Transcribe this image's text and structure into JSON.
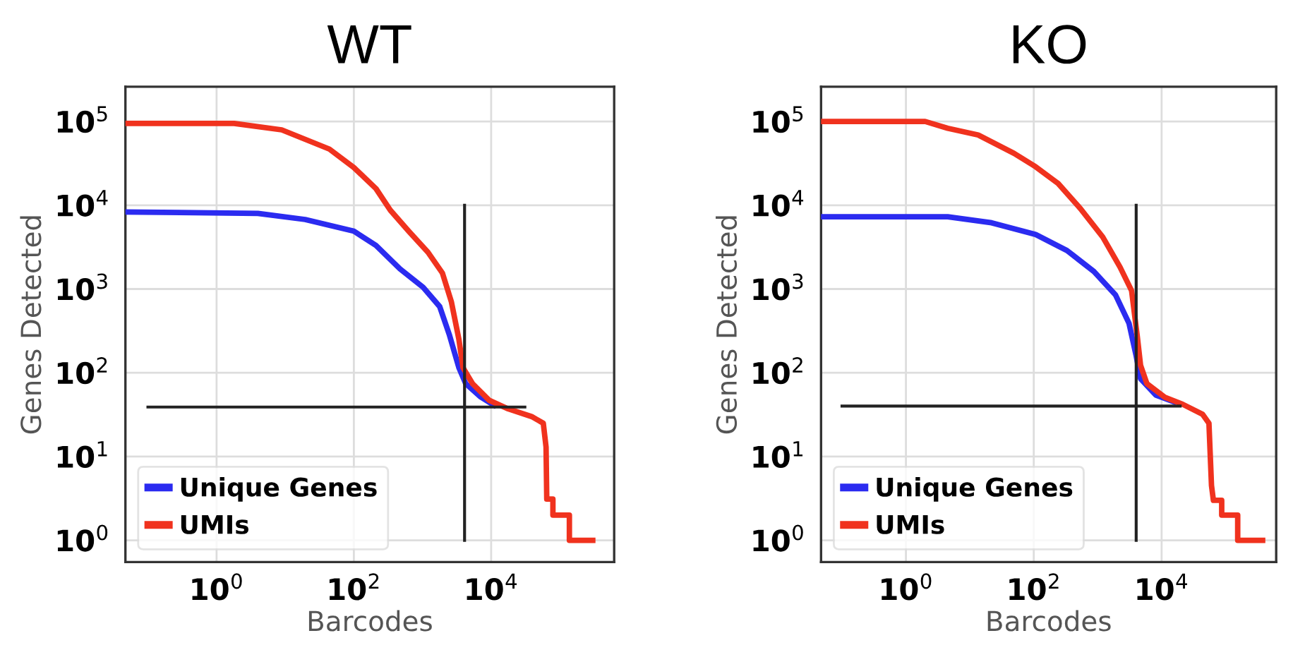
{
  "chart_data": [
    {
      "type": "line",
      "title": "WT",
      "xlabel": "Barcodes",
      "ylabel": "Genes Detected",
      "log": "xy",
      "grid": true,
      "legend": "bottom left",
      "xlim": [
        0.047,
        620000
      ],
      "ylim": [
        0.55,
        260000
      ],
      "xticks": [
        {
          "value": 1,
          "label": "10$^{0}$"
        },
        {
          "value": 100,
          "label": "10$^{2}$"
        },
        {
          "value": 10000,
          "label": "10$^{4}$"
        }
      ],
      "yticks": [
        {
          "value": 1,
          "label": "10$^{0}$"
        },
        {
          "value": 10,
          "label": "10$^{1}$"
        },
        {
          "value": 100,
          "label": "10$^{2}$"
        },
        {
          "value": 1000,
          "label": "10$^{3}$"
        },
        {
          "value": 10000,
          "label": "10$^{4}$"
        },
        {
          "value": 100000,
          "label": "10$^{5}$"
        }
      ],
      "series": [
        {
          "name": "Unique Genes",
          "color": "#2b2bf0",
          "x": [
            0.047,
            4,
            19.5,
            100,
            210,
            470,
            1020,
            1780,
            2450,
            3390,
            4270,
            6920,
            11000
          ],
          "values": [
            8300,
            8000,
            6760,
            4900,
            3310,
            1740,
            1050,
            617,
            288,
            115,
            74,
            52,
            41
          ]
        },
        {
          "name": "UMIs",
          "color": "#f0321e",
          "x": [
            0.047,
            1.8,
            8.9,
            44,
            100,
            210,
            340,
            630,
            1200,
            1950,
            2630,
            3390,
            3890,
            5370,
            9330,
            17800,
            38900,
            57500,
            63100,
            64600,
            79400,
            79400,
            138000,
            138000,
            302000
          ],
          "values": [
            95000,
            95000,
            79400,
            46800,
            28200,
            15800,
            8710,
            4900,
            2750,
            1550,
            708,
            251,
            115,
            74,
            47,
            37,
            30,
            25,
            13,
            3.1,
            3.1,
            2,
            2,
            1,
            1
          ]
        },
        {
          "color": "#222222",
          "x": [
            4100,
            4100
          ],
          "values": [
            1,
            10000
          ]
        },
        {
          "color": "#222222",
          "x": [
            0.1,
            31000
          ],
          "values": [
            39,
            39
          ]
        }
      ]
    },
    {
      "type": "line",
      "title": "KO",
      "xlabel": "Barcodes",
      "ylabel": "Genes Detected",
      "log": "xy",
      "grid": true,
      "legend": "bottom left",
      "xlim": [
        0.047,
        620000
      ],
      "ylim": [
        0.55,
        260000
      ],
      "xticks": [
        {
          "value": 1,
          "label": "10$^{0}$"
        },
        {
          "value": 100,
          "label": "10$^{2}$"
        },
        {
          "value": 10000,
          "label": "10$^{4}$"
        }
      ],
      "yticks": [
        {
          "value": 1,
          "label": "10$^{0}$"
        },
        {
          "value": 10,
          "label": "10$^{1}$"
        },
        {
          "value": 100,
          "label": "10$^{2}$"
        },
        {
          "value": 1000,
          "label": "10$^{3}$"
        },
        {
          "value": 10000,
          "label": "10$^{4}$"
        },
        {
          "value": 100000,
          "label": "10$^{5}$"
        }
      ],
      "series": [
        {
          "name": "Unique Genes",
          "color": "#2b2bf0",
          "x": [
            0.047,
            4.5,
            21.9,
            107,
            331,
            871,
            1900,
            3090,
            3980,
            4680,
            8130,
            15500
          ],
          "values": [
            7300,
            7300,
            6170,
            4470,
            2880,
            1620,
            851,
            389,
            162,
            85,
            54,
            45
          ]
        },
        {
          "name": "UMIs",
          "color": "#f0321e",
          "x": [
            0.047,
            2,
            4.5,
            13.5,
            49,
            107,
            240,
            537,
            1200,
            2240,
            3390,
            4170,
            4680,
            5890,
            11200,
            21400,
            43700,
            55000,
            60300,
            64600,
            87100,
            87100,
            155000,
            155000,
            380000
          ],
          "values": [
            100000,
            100000,
            83000,
            69000,
            41700,
            28800,
            18200,
            9120,
            4170,
            1820,
            955,
            269,
            123,
            74,
            51,
            42,
            32,
            25,
            4.5,
            3,
            3,
            2,
            2,
            1,
            1
          ]
        },
        {
          "color": "#222222",
          "x": [
            4000,
            4000
          ],
          "values": [
            1,
            10000
          ]
        },
        {
          "color": "#222222",
          "x": [
            0.1,
            19500
          ],
          "values": [
            40,
            40
          ]
        }
      ]
    }
  ]
}
